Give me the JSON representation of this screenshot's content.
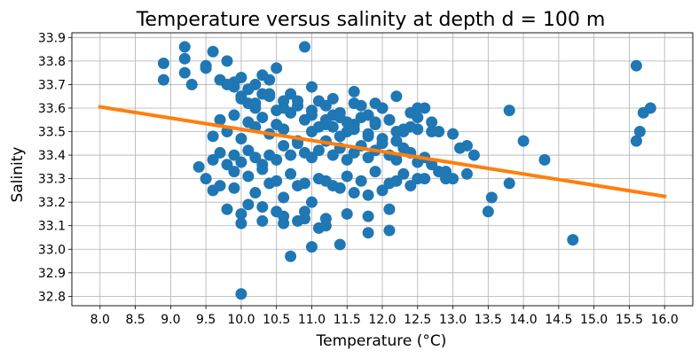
{
  "chart_data": {
    "type": "scatter",
    "title": "Temperature versus salinity at depth d = 100 m",
    "xlabel": "Temperature (°C)",
    "ylabel": "Salinity",
    "xlim": [
      7.6,
      16.4
    ],
    "ylim": [
      32.76,
      33.92
    ],
    "xticks": [
      8.0,
      8.5,
      9.0,
      9.5,
      10.0,
      10.5,
      11.0,
      11.5,
      12.0,
      12.5,
      13.0,
      13.5,
      14.0,
      14.5,
      15.0,
      15.5,
      16.0
    ],
    "yticks": [
      32.8,
      32.9,
      33.0,
      33.1,
      33.2,
      33.3,
      33.4,
      33.5,
      33.6,
      33.7,
      33.8,
      33.9
    ],
    "grid": true,
    "colors": {
      "points": "#1f77b4",
      "fit": "#ff7f0e"
    },
    "series": [
      {
        "name": "observations",
        "type": "scatter",
        "x": [
          9.2,
          8.9,
          9.2,
          8.9,
          9.5,
          9.6,
          9.3,
          9.2,
          9.5,
          9.8,
          9.7,
          9.9,
          10.0,
          10.1,
          10.2,
          10.3,
          10.5,
          10.4,
          9.9,
          10.1,
          10.0,
          10.2,
          10.3,
          10.5,
          10.6,
          10.7,
          10.8,
          10.9,
          11.0,
          11.1,
          11.2,
          11.3,
          11.4,
          11.5,
          11.6,
          11.7,
          11.8,
          11.9,
          12.0,
          12.1,
          12.2,
          12.3,
          12.4,
          12.5,
          12.6,
          12.7,
          12.8,
          12.9,
          13.0,
          13.1,
          13.2,
          13.3,
          13.8,
          14.0,
          14.3,
          14.7,
          15.6,
          15.7,
          15.8,
          15.6,
          15.65,
          13.5,
          13.55,
          13.8,
          10.0,
          10.0,
          10.7,
          11.0,
          11.4,
          11.8,
          12.1,
          10.9,
          11.1,
          11.2,
          10.8,
          10.6,
          10.5,
          10.3,
          10.1,
          9.8,
          9.6,
          9.5,
          9.4,
          9.7,
          9.9,
          10.2,
          10.4,
          10.6,
          10.8,
          11.0,
          11.2,
          11.4,
          11.6,
          11.8,
          12.0,
          12.2,
          12.4,
          12.6,
          12.8,
          13.0,
          13.2,
          9.6,
          9.7,
          9.8,
          9.9,
          10.0,
          10.1,
          10.2,
          10.3,
          10.4,
          10.5,
          10.6,
          10.7,
          10.8,
          10.9,
          11.0,
          11.1,
          11.2,
          11.3,
          11.4,
          11.5,
          11.6,
          11.7,
          11.8,
          11.9,
          12.0,
          12.1,
          12.2,
          12.3,
          12.4,
          12.5,
          12.6,
          12.7,
          12.9,
          9.6,
          9.8,
          10.0,
          10.2,
          10.4,
          10.6,
          10.8,
          11.0,
          11.2,
          11.4,
          11.6,
          11.8,
          12.0,
          12.2,
          12.4,
          9.7,
          9.9,
          10.1,
          10.3,
          10.5,
          10.7,
          10.9,
          11.1,
          11.3,
          11.5,
          11.7,
          11.9,
          12.1,
          12.3,
          12.5,
          12.7,
          10.0,
          10.2,
          10.4,
          10.6,
          10.8,
          11.0,
          11.2,
          11.4,
          11.6,
          11.8,
          12.0,
          9.9,
          10.1,
          10.3,
          10.5,
          10.7,
          10.9,
          11.1,
          11.3,
          11.5,
          11.7,
          11.9,
          12.1,
          12.3,
          12.5,
          10.0,
          10.3,
          10.6,
          10.9,
          11.2,
          11.5,
          11.8,
          12.1,
          9.8,
          10.1,
          10.4,
          10.7,
          11.0,
          11.3,
          11.6,
          11.9,
          12.2,
          12.5
        ],
        "y": [
          33.86,
          33.79,
          33.81,
          33.72,
          33.78,
          33.84,
          33.7,
          33.75,
          33.77,
          33.8,
          33.72,
          33.71,
          33.73,
          33.68,
          33.7,
          33.74,
          33.77,
          33.65,
          33.69,
          33.62,
          33.64,
          33.6,
          33.66,
          33.59,
          33.63,
          33.58,
          33.61,
          33.86,
          33.57,
          33.63,
          33.55,
          33.52,
          33.56,
          33.5,
          33.53,
          33.61,
          33.48,
          33.54,
          33.6,
          33.55,
          33.46,
          33.5,
          33.58,
          33.51,
          33.6,
          33.5,
          33.5,
          33.33,
          33.49,
          33.43,
          33.44,
          33.4,
          33.59,
          33.46,
          33.38,
          33.04,
          33.78,
          33.58,
          33.6,
          33.46,
          33.5,
          33.16,
          33.22,
          33.28,
          32.81,
          33.11,
          32.97,
          33.01,
          33.02,
          33.07,
          33.08,
          33.13,
          33.09,
          33.1,
          33.12,
          33.11,
          33.16,
          33.18,
          33.19,
          33.17,
          33.25,
          33.3,
          33.35,
          33.27,
          33.26,
          33.24,
          33.28,
          33.22,
          33.27,
          33.2,
          33.29,
          33.26,
          33.24,
          33.23,
          33.25,
          33.29,
          33.27,
          33.3,
          33.33,
          33.3,
          33.32,
          33.38,
          33.41,
          33.36,
          33.4,
          33.37,
          33.42,
          33.39,
          33.36,
          33.4,
          33.38,
          33.44,
          33.4,
          33.45,
          33.41,
          33.39,
          33.42,
          33.46,
          33.4,
          33.43,
          33.38,
          33.41,
          33.44,
          33.39,
          33.42,
          33.45,
          33.4,
          33.38,
          33.43,
          33.41,
          33.37,
          33.39,
          33.36,
          33.3,
          33.48,
          33.5,
          33.47,
          33.52,
          33.49,
          33.51,
          33.46,
          33.5,
          33.53,
          33.48,
          33.51,
          33.49,
          33.47,
          33.5,
          33.52,
          33.55,
          33.57,
          33.54,
          33.56,
          33.53,
          33.58,
          33.55,
          33.52,
          33.57,
          33.54,
          33.56,
          33.53,
          33.55,
          33.51,
          33.56,
          33.54,
          33.65,
          33.62,
          33.66,
          33.6,
          33.63,
          33.59,
          33.61,
          33.58,
          33.62,
          33.57,
          33.6,
          33.33,
          33.31,
          33.34,
          33.29,
          33.32,
          33.28,
          33.3,
          33.27,
          33.31,
          33.29,
          33.33,
          33.28,
          33.32,
          33.3,
          33.15,
          33.12,
          33.14,
          33.16,
          33.13,
          33.15,
          33.14,
          33.17,
          33.7,
          33.68,
          33.72,
          33.66,
          33.69,
          33.64,
          33.67,
          33.62,
          33.65,
          33.6
        ]
      },
      {
        "name": "linear fit",
        "type": "line",
        "x": [
          8.0,
          16.0
        ],
        "y": [
          33.605,
          33.225
        ]
      }
    ]
  }
}
